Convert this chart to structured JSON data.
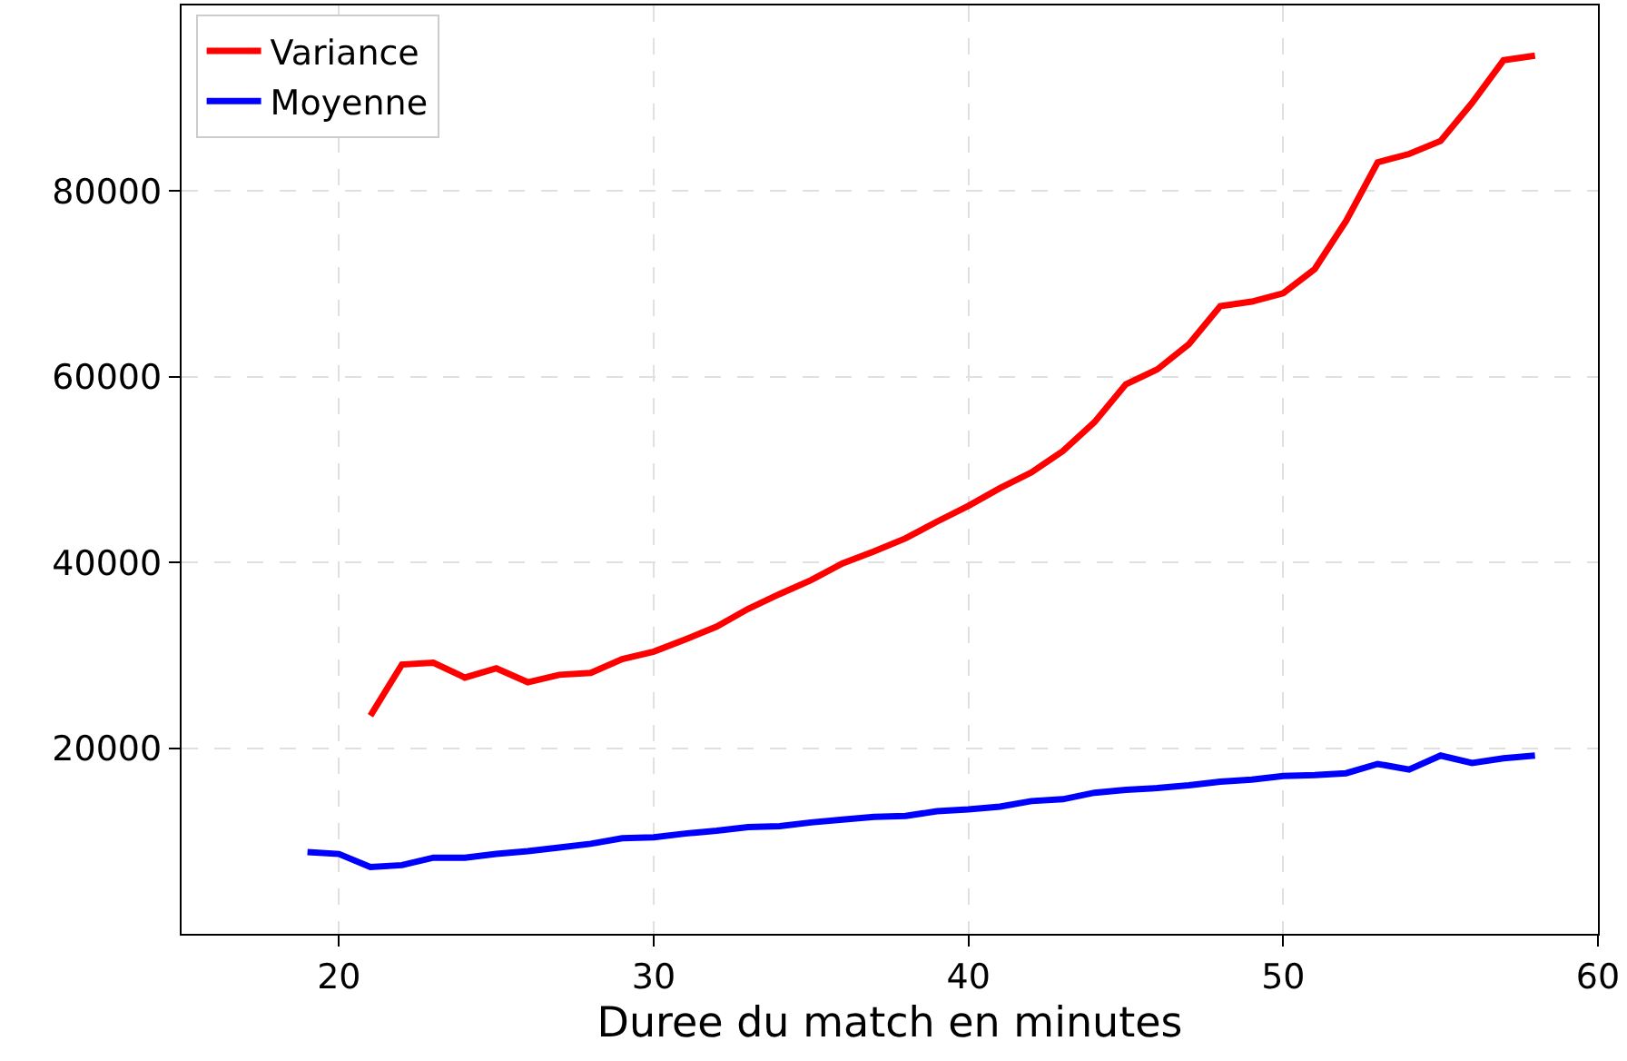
{
  "chart_data": {
    "type": "line",
    "xlabel": "Duree du match en minutes",
    "xlim": [
      15,
      60
    ],
    "xticks": [
      20,
      30,
      40,
      50,
      60
    ],
    "ylim": [
      0,
      100000
    ],
    "yticks": [
      20000,
      40000,
      60000,
      80000
    ],
    "grid": true,
    "legend": "top left",
    "line_style": "solid",
    "marker": "none",
    "series": [
      {
        "name": "Variance",
        "color": "#ff0000",
        "x": [
          21,
          22,
          23,
          24,
          25,
          26,
          27,
          28,
          29,
          30,
          31,
          32,
          33,
          34,
          35,
          36,
          37,
          38,
          39,
          40,
          41,
          42,
          43,
          44,
          45,
          46,
          47,
          48,
          49,
          50,
          51,
          52,
          53,
          54,
          55,
          56,
          57,
          58
        ],
        "values": [
          23500,
          29000,
          29200,
          27600,
          28600,
          27100,
          27900,
          28100,
          29600,
          30400,
          31700,
          33100,
          35000,
          36600,
          38100,
          39900,
          41200,
          42600,
          44400,
          46100,
          48000,
          49700,
          52000,
          55100,
          59200,
          60800,
          63500,
          67600,
          68100,
          69000,
          71600,
          76800,
          83100,
          84000,
          85400,
          89500,
          94100,
          94600
        ]
      },
      {
        "name": "Moyenne",
        "color": "#0000ff",
        "x": [
          19,
          20,
          21,
          22,
          23,
          24,
          25,
          26,
          27,
          28,
          29,
          30,
          31,
          32,
          33,
          34,
          35,
          36,
          37,
          38,
          39,
          40,
          41,
          42,
          43,
          44,
          45,
          46,
          47,
          48,
          49,
          50,
          51,
          52,
          53,
          54,
          55,
          56,
          57,
          58
        ],
        "values": [
          8800,
          8600,
          7200,
          7400,
          8200,
          8200,
          8600,
          8900,
          9300,
          9700,
          10300,
          10400,
          10800,
          11100,
          11500,
          11600,
          12000,
          12300,
          12600,
          12700,
          13200,
          13400,
          13700,
          14300,
          14500,
          15200,
          15500,
          15700,
          16000,
          16400,
          16600,
          17000,
          17100,
          17300,
          18300,
          17700,
          19200,
          18400,
          18900,
          19200
        ]
      }
    ]
  }
}
